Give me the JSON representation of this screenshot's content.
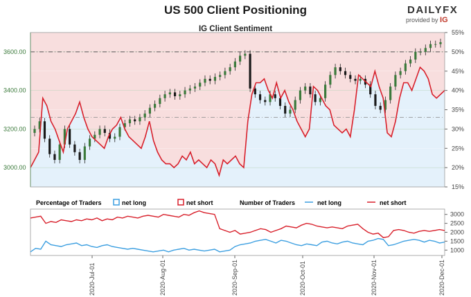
{
  "header": {
    "title": "US 500 Client Positioning",
    "subtitle": "IG Client Sentiment",
    "brand": "DAILYFX",
    "brand_sub": "provided by",
    "brand_ig": "IG"
  },
  "colors": {
    "net_long": "#3a9ee0",
    "net_short": "#d81f2a",
    "long_fill": "#e4f1fb",
    "short_fill": "#f8dede",
    "candle_up": "#3b7a3b",
    "candle_down": "#1a1a1a",
    "ref_line": "#555555"
  },
  "legend": {
    "pct_title": "Percentage of Traders",
    "count_title": "Number of Traders",
    "net_long": "net long",
    "net_short": "net short"
  },
  "chart_data": [
    {
      "type": "line",
      "title": "IG Client Sentiment",
      "y_left_ticks": [
        "3000.00",
        "3200.00",
        "3400.00",
        "3600.00"
      ],
      "ylim_left": [
        2900,
        3700
      ],
      "y_right_ticks": [
        "15%",
        "20%",
        "25%",
        "30%",
        "35%",
        "40%",
        "45%",
        "50%",
        "55%"
      ],
      "ylim_right": [
        15,
        55
      ],
      "reference_price": 3600,
      "reference_pct": 33,
      "price_ohlc_approx": [
        3200,
        3240,
        3150,
        3070,
        3040,
        3120,
        3200,
        3120,
        3080,
        3040,
        3110,
        3150,
        3170,
        3200,
        3180,
        3150,
        3160,
        3210,
        3230,
        3250,
        3240,
        3260,
        3280,
        3310,
        3330,
        3360,
        3380,
        3390,
        3370,
        3380,
        3400,
        3410,
        3420,
        3440,
        3460,
        3450,
        3470,
        3480,
        3500,
        3520,
        3550,
        3580,
        3590,
        3410,
        3380,
        3350,
        3340,
        3380,
        3360,
        3320,
        3280,
        3300,
        3350,
        3400,
        3420,
        3380,
        3340,
        3360,
        3430,
        3480,
        3520,
        3500,
        3480,
        3460,
        3450,
        3460,
        3430,
        3380,
        3320,
        3300,
        3350,
        3420,
        3480,
        3500,
        3540,
        3560,
        3600,
        3600,
        3620,
        3640,
        3640,
        3650
      ],
      "net_long_pct": [
        20,
        22,
        24,
        38,
        36,
        32,
        30,
        27,
        24,
        30,
        32,
        34,
        37,
        33,
        30,
        28,
        27,
        26,
        25,
        28,
        30,
        31,
        33,
        30,
        28,
        27,
        26,
        25,
        28,
        32,
        27,
        24,
        22,
        21,
        21,
        20,
        21,
        23,
        22,
        24,
        21,
        22,
        21,
        20,
        22,
        21,
        18,
        22,
        21,
        22,
        23,
        21,
        20,
        32,
        39,
        42,
        42,
        43,
        40,
        38,
        42,
        38,
        40,
        37,
        35,
        32,
        30,
        28,
        30,
        41,
        40,
        38,
        36,
        35,
        31,
        30,
        29,
        30,
        28,
        35,
        44,
        43,
        42,
        41,
        45,
        41,
        38,
        29,
        28,
        32,
        38,
        42,
        42,
        40,
        43,
        46,
        45,
        43,
        39,
        38,
        39,
        40
      ],
      "net_short_pct": [
        80,
        78,
        76,
        62,
        64,
        68,
        70,
        73,
        76,
        70,
        68,
        66,
        63,
        67,
        70,
        72,
        73,
        74,
        75,
        72,
        70,
        69,
        67,
        70,
        72,
        73,
        74,
        75,
        72,
        68,
        73,
        76,
        78,
        79,
        79,
        80,
        79,
        77,
        78,
        76,
        79,
        78,
        79,
        80,
        78,
        79,
        82,
        78,
        79,
        78,
        77,
        79,
        80,
        68,
        61,
        58,
        58,
        57,
        60,
        62,
        58,
        62,
        60,
        63,
        65,
        68,
        70,
        72,
        70,
        59,
        60,
        62,
        64,
        65,
        69,
        70,
        71,
        70,
        72,
        65,
        56,
        57,
        58,
        59,
        55,
        59,
        62,
        71,
        72,
        68,
        62,
        58,
        58,
        60,
        57,
        54,
        55,
        57,
        61,
        62,
        61,
        60
      ]
    },
    {
      "type": "line",
      "title": "Number of Traders",
      "x_tick_labels": [
        "2020-Jul-01",
        "2020-Aug-01",
        "2020-Sep-01",
        "2020-Oct-01",
        "2020-Nov-01",
        "2020-Dec-01"
      ],
      "y_ticks": [
        "1000",
        "1500",
        "2000",
        "2500",
        "3000"
      ],
      "ylim": [
        700,
        3300
      ],
      "series": [
        {
          "name": "net long",
          "values": [
            900,
            1100,
            1050,
            1500,
            1300,
            1250,
            1200,
            1300,
            1350,
            1400,
            1250,
            1300,
            1200,
            1150,
            1250,
            1300,
            1200,
            1150,
            1100,
            1050,
            1100,
            1050,
            1000,
            950,
            900,
            950,
            1000,
            900,
            1000,
            1050,
            1100,
            1000,
            1050,
            1000,
            950,
            1000,
            1050,
            900,
            950,
            1000,
            1200,
            1300,
            1350,
            1400,
            1500,
            1550,
            1600,
            1500,
            1400,
            1550,
            1500,
            1400,
            1300,
            1250,
            1350,
            1300,
            1250,
            1450,
            1500,
            1400,
            1350,
            1450,
            1500,
            1400,
            1350,
            1300,
            1500,
            1550,
            1650,
            1600,
            1250,
            1300,
            1400,
            1500,
            1550,
            1600,
            1550,
            1450,
            1550,
            1500,
            1400,
            1450
          ]
        },
        {
          "name": "net short",
          "values": [
            2800,
            2850,
            2900,
            2500,
            2600,
            2550,
            2700,
            2650,
            2600,
            2700,
            2650,
            2750,
            2700,
            2800,
            2650,
            2750,
            2700,
            2850,
            2800,
            2900,
            2850,
            2800,
            2900,
            2950,
            2900,
            2850,
            3000,
            2950,
            2900,
            2850,
            3000,
            2950,
            3100,
            3200,
            3100,
            3050,
            3000,
            2200,
            2100,
            2000,
            2100,
            1900,
            1950,
            2000,
            2100,
            2200,
            2150,
            2000,
            2100,
            2200,
            2350,
            2300,
            2250,
            2400,
            2500,
            2450,
            2350,
            2300,
            2250,
            2300,
            2250,
            2200,
            2350,
            2400,
            2450,
            2200,
            2000,
            1900,
            1950,
            1700,
            1750,
            2100,
            2150,
            2100,
            2000,
            1950,
            2050,
            2100,
            2050,
            2100,
            2150,
            2100
          ]
        }
      ]
    }
  ]
}
